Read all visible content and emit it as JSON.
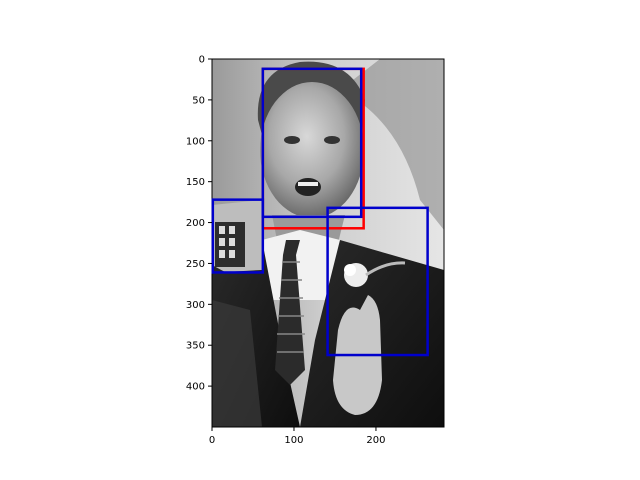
{
  "chart_data": {
    "type": "image-with-boxes",
    "image": {
      "width": 283,
      "height": 450,
      "grayscale": true
    },
    "x_ticks": [
      0,
      100,
      200
    ],
    "y_ticks": [
      0,
      50,
      100,
      150,
      200,
      250,
      300,
      350,
      400
    ],
    "boxes": [
      {
        "name": "red-box",
        "color": "#ff0000",
        "x0": 62,
        "y0": 12,
        "x1": 185,
        "y1": 207
      },
      {
        "name": "blue-box-face",
        "color": "#0000cc",
        "x0": 62,
        "y0": 12,
        "x1": 182,
        "y1": 193
      },
      {
        "name": "blue-box-left",
        "color": "#0000cc",
        "x0": 1,
        "y0": 172,
        "x1": 62,
        "y1": 261
      },
      {
        "name": "blue-box-right",
        "color": "#0000cc",
        "x0": 141,
        "y0": 182,
        "x1": 263,
        "y1": 362
      }
    ]
  }
}
